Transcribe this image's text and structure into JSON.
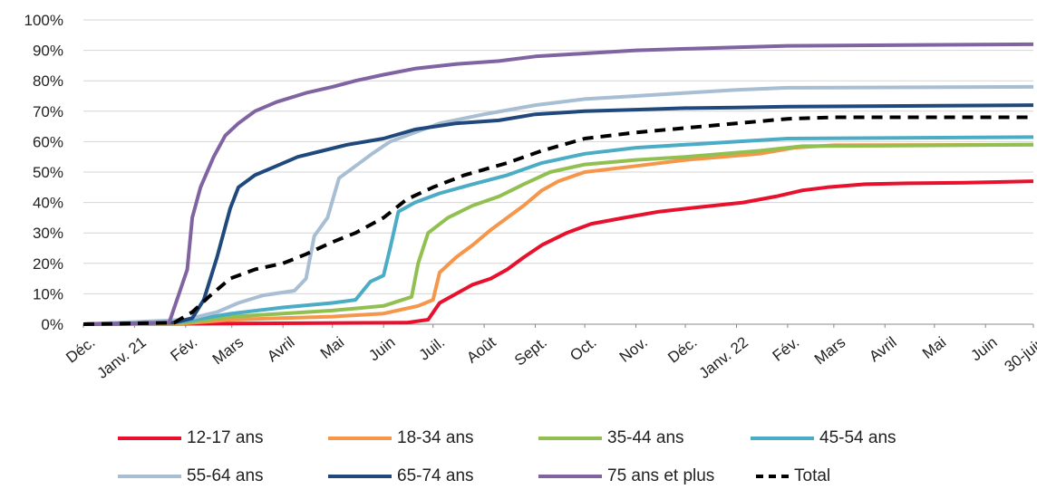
{
  "chart_data": {
    "type": "line",
    "y_ticks": [
      "0%",
      "10%",
      "20%",
      "30%",
      "40%",
      "50%",
      "60%",
      "70%",
      "80%",
      "90%",
      "100%"
    ],
    "ylim": [
      0,
      100
    ],
    "grid": true,
    "x_tick_labels": [
      "Déc.",
      "Janv. 21",
      "Fév.",
      "Mars",
      "Avril",
      "Mai",
      "Juin",
      "Juil.",
      "Août",
      "Sept.",
      "Oct.",
      "Nov.",
      "Déc.",
      "Janv. 22",
      "Fév.",
      "Mars",
      "Avril",
      "Mai",
      "Juin",
      "30-juin"
    ],
    "x_tick_dates": [
      "2020-12-01",
      "2021-01-01",
      "2021-02-01",
      "2021-03-01",
      "2021-04-01",
      "2021-05-01",
      "2021-06-01",
      "2021-07-01",
      "2021-08-01",
      "2021-09-01",
      "2021-10-01",
      "2021-11-01",
      "2021-12-01",
      "2022-01-01",
      "2022-02-01",
      "2022-03-01",
      "2022-04-01",
      "2022-05-01",
      "2022-06-01",
      "2022-06-30"
    ],
    "legend_position": "bottom",
    "series": [
      {
        "name": "12-17 ans",
        "color": "#e8112d",
        "dash": false,
        "points": [
          [
            "2020-12-01",
            0
          ],
          [
            "2021-06-15",
            0.5
          ],
          [
            "2021-06-28",
            1.5
          ],
          [
            "2021-07-05",
            7
          ],
          [
            "2021-07-15",
            10
          ],
          [
            "2021-07-25",
            13
          ],
          [
            "2021-08-05",
            15
          ],
          [
            "2021-08-15",
            18
          ],
          [
            "2021-08-25",
            22
          ],
          [
            "2021-09-05",
            26
          ],
          [
            "2021-09-20",
            30
          ],
          [
            "2021-10-05",
            33
          ],
          [
            "2021-10-25",
            35
          ],
          [
            "2021-11-15",
            37
          ],
          [
            "2021-12-10",
            38.5
          ],
          [
            "2022-01-05",
            40
          ],
          [
            "2022-01-25",
            42
          ],
          [
            "2022-02-10",
            44
          ],
          [
            "2022-02-25",
            45
          ],
          [
            "2022-03-20",
            46
          ],
          [
            "2022-04-15",
            46.3
          ],
          [
            "2022-05-20",
            46.5
          ],
          [
            "2022-06-30",
            47
          ]
        ]
      },
      {
        "name": "18-34 ans",
        "color": "#f6964a",
        "dash": false,
        "points": [
          [
            "2020-12-01",
            0
          ],
          [
            "2021-02-01",
            0.3
          ],
          [
            "2021-03-01",
            1.5
          ],
          [
            "2021-04-01",
            2
          ],
          [
            "2021-05-01",
            2.5
          ],
          [
            "2021-06-01",
            3.5
          ],
          [
            "2021-06-22",
            6
          ],
          [
            "2021-07-01",
            8
          ],
          [
            "2021-07-05",
            17
          ],
          [
            "2021-07-15",
            22
          ],
          [
            "2021-07-25",
            26
          ],
          [
            "2021-08-05",
            31
          ],
          [
            "2021-08-15",
            35
          ],
          [
            "2021-08-25",
            39
          ],
          [
            "2021-09-05",
            44
          ],
          [
            "2021-09-15",
            47
          ],
          [
            "2021-10-01",
            50
          ],
          [
            "2021-11-01",
            52
          ],
          [
            "2021-12-01",
            54
          ],
          [
            "2022-01-15",
            56
          ],
          [
            "2022-02-05",
            58
          ],
          [
            "2022-03-01",
            58.8
          ],
          [
            "2022-06-30",
            59
          ]
        ]
      },
      {
        "name": "35-44 ans",
        "color": "#92c050",
        "dash": false,
        "points": [
          [
            "2020-12-01",
            0
          ],
          [
            "2021-02-01",
            0.5
          ],
          [
            "2021-03-01",
            2.5
          ],
          [
            "2021-04-01",
            3.5
          ],
          [
            "2021-05-01",
            4.5
          ],
          [
            "2021-06-01",
            6
          ],
          [
            "2021-06-18",
            9
          ],
          [
            "2021-06-22",
            20
          ],
          [
            "2021-06-28",
            30
          ],
          [
            "2021-07-10",
            35
          ],
          [
            "2021-07-25",
            39
          ],
          [
            "2021-08-10",
            42
          ],
          [
            "2021-08-25",
            46
          ],
          [
            "2021-09-10",
            50
          ],
          [
            "2021-10-01",
            52.5
          ],
          [
            "2021-11-01",
            54
          ],
          [
            "2021-12-01",
            55
          ],
          [
            "2022-01-15",
            57
          ],
          [
            "2022-02-10",
            58.5
          ],
          [
            "2022-06-30",
            59
          ]
        ]
      },
      {
        "name": "45-54 ans",
        "color": "#4bacc6",
        "dash": false,
        "points": [
          [
            "2020-12-01",
            0
          ],
          [
            "2021-02-01",
            1
          ],
          [
            "2021-03-01",
            3.5
          ],
          [
            "2021-04-01",
            5.5
          ],
          [
            "2021-05-01",
            7
          ],
          [
            "2021-05-15",
            8
          ],
          [
            "2021-05-24",
            14
          ],
          [
            "2021-06-01",
            16
          ],
          [
            "2021-06-05",
            25
          ],
          [
            "2021-06-10",
            37
          ],
          [
            "2021-06-20",
            40
          ],
          [
            "2021-07-05",
            43
          ],
          [
            "2021-07-25",
            46
          ],
          [
            "2021-08-15",
            49
          ],
          [
            "2021-09-05",
            53
          ],
          [
            "2021-10-01",
            56
          ],
          [
            "2021-11-01",
            58
          ],
          [
            "2021-12-01",
            59
          ],
          [
            "2022-01-01",
            60
          ],
          [
            "2022-02-01",
            61
          ],
          [
            "2022-06-30",
            61.5
          ]
        ]
      },
      {
        "name": "55-64 ans",
        "color": "#a8bed3",
        "dash": false,
        "points": [
          [
            "2020-12-01",
            0
          ],
          [
            "2021-02-01",
            1.5
          ],
          [
            "2021-02-20",
            4
          ],
          [
            "2021-03-05",
            7
          ],
          [
            "2021-03-20",
            9.5
          ],
          [
            "2021-04-08",
            11
          ],
          [
            "2021-04-15",
            15
          ],
          [
            "2021-04-20",
            29
          ],
          [
            "2021-04-28",
            35
          ],
          [
            "2021-05-05",
            48
          ],
          [
            "2021-05-15",
            52
          ],
          [
            "2021-05-25",
            56
          ],
          [
            "2021-06-05",
            60
          ],
          [
            "2021-06-20",
            63
          ],
          [
            "2021-07-05",
            66
          ],
          [
            "2021-08-01",
            69
          ],
          [
            "2021-09-01",
            72
          ],
          [
            "2021-10-01",
            74
          ],
          [
            "2021-11-01",
            75
          ],
          [
            "2021-12-01",
            76
          ],
          [
            "2022-01-01",
            77
          ],
          [
            "2022-02-01",
            77.7
          ],
          [
            "2022-06-30",
            78
          ]
        ]
      },
      {
        "name": "65-74 ans",
        "color": "#1f497d",
        "dash": false,
        "points": [
          [
            "2020-12-01",
            0
          ],
          [
            "2021-01-25",
            0.5
          ],
          [
            "2021-02-05",
            2
          ],
          [
            "2021-02-12",
            8
          ],
          [
            "2021-02-20",
            22
          ],
          [
            "2021-02-28",
            38
          ],
          [
            "2021-03-05",
            45
          ],
          [
            "2021-03-15",
            49
          ],
          [
            "2021-03-28",
            52
          ],
          [
            "2021-04-10",
            55
          ],
          [
            "2021-04-25",
            57
          ],
          [
            "2021-05-10",
            59
          ],
          [
            "2021-06-01",
            61
          ],
          [
            "2021-06-20",
            64
          ],
          [
            "2021-07-15",
            66
          ],
          [
            "2021-08-10",
            67
          ],
          [
            "2021-09-01",
            69
          ],
          [
            "2021-10-01",
            70
          ],
          [
            "2021-11-01",
            70.5
          ],
          [
            "2021-12-01",
            71
          ],
          [
            "2022-01-01",
            71.2
          ],
          [
            "2022-02-01",
            71.5
          ],
          [
            "2022-06-30",
            72
          ]
        ]
      },
      {
        "name": "75 ans et plus",
        "color": "#8064a2",
        "dash": false,
        "points": [
          [
            "2020-12-01",
            0
          ],
          [
            "2021-01-22",
            0.5
          ],
          [
            "2021-01-28",
            10
          ],
          [
            "2021-02-02",
            18
          ],
          [
            "2021-02-05",
            35
          ],
          [
            "2021-02-10",
            45
          ],
          [
            "2021-02-18",
            55
          ],
          [
            "2021-02-25",
            62
          ],
          [
            "2021-03-05",
            66
          ],
          [
            "2021-03-15",
            70
          ],
          [
            "2021-03-28",
            73
          ],
          [
            "2021-04-15",
            76
          ],
          [
            "2021-05-01",
            78
          ],
          [
            "2021-05-15",
            80
          ],
          [
            "2021-06-01",
            82
          ],
          [
            "2021-06-20",
            84
          ],
          [
            "2021-07-15",
            85.5
          ],
          [
            "2021-08-10",
            86.5
          ],
          [
            "2021-09-01",
            88
          ],
          [
            "2021-10-01",
            89
          ],
          [
            "2021-11-01",
            90
          ],
          [
            "2021-12-01",
            90.5
          ],
          [
            "2022-01-01",
            91
          ],
          [
            "2022-02-01",
            91.5
          ],
          [
            "2022-06-30",
            92
          ]
        ]
      },
      {
        "name": "Total",
        "color": "#000000",
        "dash": true,
        "points": [
          [
            "2020-12-01",
            0
          ],
          [
            "2021-01-25",
            0.5
          ],
          [
            "2021-02-05",
            4
          ],
          [
            "2021-02-15",
            9
          ],
          [
            "2021-02-28",
            15
          ],
          [
            "2021-03-15",
            18
          ],
          [
            "2021-04-01",
            20
          ],
          [
            "2021-04-15",
            23
          ],
          [
            "2021-05-01",
            27
          ],
          [
            "2021-05-15",
            30
          ],
          [
            "2021-06-01",
            35
          ],
          [
            "2021-06-15",
            41
          ],
          [
            "2021-07-01",
            45
          ],
          [
            "2021-07-20",
            49
          ],
          [
            "2021-08-15",
            53
          ],
          [
            "2021-09-05",
            57
          ],
          [
            "2021-10-01",
            61
          ],
          [
            "2021-11-01",
            63
          ],
          [
            "2021-12-01",
            64.5
          ],
          [
            "2022-01-01",
            66
          ],
          [
            "2022-02-01",
            67.5
          ],
          [
            "2022-03-01",
            68
          ],
          [
            "2022-06-30",
            68
          ]
        ]
      }
    ]
  }
}
